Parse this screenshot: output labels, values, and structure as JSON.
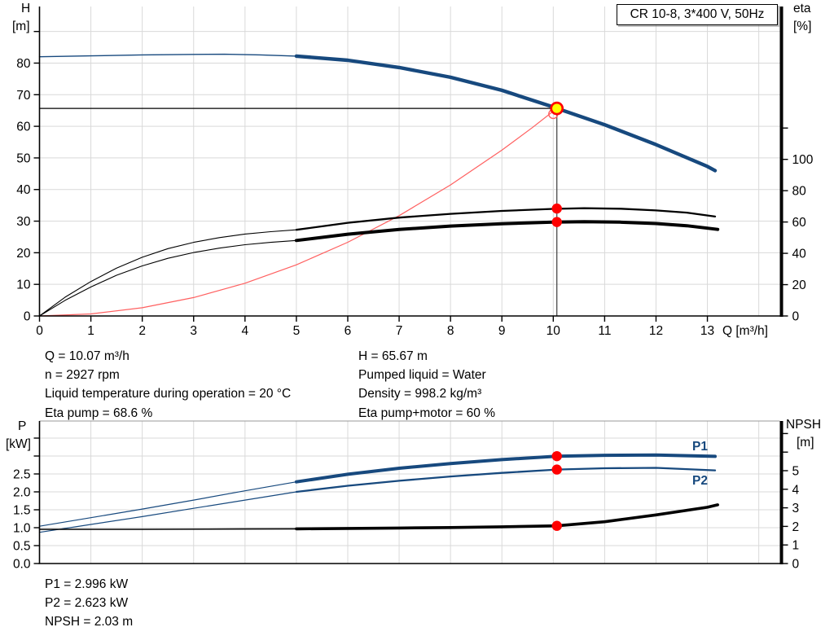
{
  "colors": {
    "curve_blue": "#17497E",
    "grid": "#D9D9D9",
    "axis": "#000000",
    "red": "#FF0000",
    "system_red": "#FF6060",
    "marker_yellow": "#FFFF00",
    "frame_gray": "#9A9A9A",
    "crosshair_gray": "#3C3C3C"
  },
  "info_top": {
    "left": [
      "Q = 10.07 m³/h",
      "n = 2927 rpm",
      "Liquid temperature during operation = 20 °C",
      "Eta pump = 68.6 %"
    ],
    "right": [
      "H = 65.67 m",
      "Pumped liquid = Water",
      "Density = 998.2 kg/m³",
      "Eta pump+motor = 60 %"
    ]
  },
  "info_bottom": [
    "P1 = 2.996 kW",
    "P2 = 2.623 kW",
    "NPSH = 2.03 m"
  ],
  "chart_data": [
    {
      "type": "line",
      "name": "hq-eta-chart",
      "title": "CR 10-8, 3*400 V, 50Hz",
      "x": {
        "label": "Q [m³/h]",
        "min": 0,
        "max": 14.41,
        "tick_values": [
          0,
          1,
          2,
          3,
          4,
          5,
          6,
          7,
          8,
          9,
          10,
          11,
          12,
          13
        ],
        "tick_labels": [
          "0",
          "1",
          "2",
          "3",
          "4",
          "5",
          "6",
          "7",
          "8",
          "9",
          "10",
          "11",
          "12",
          "13"
        ],
        "grid_values": [
          1,
          2,
          3,
          4,
          5,
          6,
          7,
          8,
          9,
          10,
          11,
          12,
          13,
          14
        ],
        "show_x_labels": true
      },
      "y_left": {
        "label": "H",
        "unit": "[m]",
        "min": 0,
        "max": 97.9,
        "tick_values": [
          0,
          10,
          20,
          30,
          40,
          50,
          60,
          70,
          80
        ],
        "tick_labels": [
          "0",
          "10",
          "20",
          "30",
          "40",
          "50",
          "60",
          "70",
          "80"
        ],
        "minor_ticks": [
          90
        ],
        "grid_values": [
          10,
          20,
          30,
          40,
          50,
          60,
          70,
          80,
          90
        ]
      },
      "y_right": {
        "label": "eta",
        "unit": "[%]",
        "min": 0,
        "max": 197.6,
        "tick_values": [
          0,
          20,
          40,
          60,
          80,
          100
        ],
        "tick_labels": [
          "0",
          "20",
          "40",
          "60",
          "80",
          "100"
        ],
        "minor_ticks": [
          120
        ]
      },
      "crosshair": {
        "q": 10.07,
        "value": 65.67
      },
      "series": [
        {
          "name": "head-curve-low-flow",
          "axis": "left",
          "color": "#17497E",
          "width": 1.4,
          "points": [
            [
              0,
              82.0
            ],
            [
              1,
              82.3
            ],
            [
              2,
              82.6
            ],
            [
              3,
              82.75
            ],
            [
              3.6,
              82.8
            ],
            [
              4.3,
              82.6
            ],
            [
              5,
              82.2
            ]
          ]
        },
        {
          "name": "head-curve",
          "axis": "left",
          "color": "#17497E",
          "width": 4.4,
          "points": [
            [
              5,
              82.2
            ],
            [
              6,
              80.9
            ],
            [
              7,
              78.6
            ],
            [
              8,
              75.5
            ],
            [
              9,
              71.4
            ],
            [
              10,
              66.1
            ],
            [
              10.07,
              65.67
            ],
            [
              11,
              60.5
            ],
            [
              12,
              54.2
            ],
            [
              13,
              47.3
            ],
            [
              13.15,
              46.0
            ]
          ]
        },
        {
          "name": "system-curve",
          "axis": "left",
          "color": "#FF6060",
          "width": 1.2,
          "points": [
            [
              0,
              0
            ],
            [
              1,
              0.65
            ],
            [
              2,
              2.59
            ],
            [
              3,
              5.83
            ],
            [
              4,
              10.36
            ],
            [
              5,
              16.19
            ],
            [
              6,
              23.31
            ],
            [
              7,
              31.73
            ],
            [
              8,
              41.45
            ],
            [
              9,
              52.46
            ],
            [
              9.6,
              59.7
            ],
            [
              10.07,
              65.67
            ]
          ]
        },
        {
          "name": "eta-pump-curve-low-flow",
          "axis": "right",
          "color": "#000000",
          "width": 1.1,
          "points": [
            [
              0,
              0
            ],
            [
              0.5,
              12
            ],
            [
              1,
              22
            ],
            [
              1.5,
              30.5
            ],
            [
              2,
              37.5
            ],
            [
              2.5,
              43
            ],
            [
              3,
              47
            ],
            [
              3.5,
              50
            ],
            [
              4,
              52.3
            ],
            [
              4.5,
              53.8
            ],
            [
              5,
              55
            ]
          ]
        },
        {
          "name": "eta-pump-curve",
          "axis": "right",
          "color": "#000000",
          "width": 2.3,
          "points": [
            [
              5,
              55
            ],
            [
              6,
              59.5
            ],
            [
              7,
              62.8
            ],
            [
              8,
              65.2
            ],
            [
              9,
              67.1
            ],
            [
              10,
              68.4
            ],
            [
              10.6,
              68.8
            ],
            [
              11.3,
              68.5
            ],
            [
              12,
              67.4
            ],
            [
              12.6,
              66.0
            ],
            [
              13.15,
              63.5
            ]
          ]
        },
        {
          "name": "eta-pump-motor-curve-low-flow",
          "axis": "right",
          "color": "#000000",
          "width": 1.1,
          "points": [
            [
              0,
              0
            ],
            [
              0.5,
              10
            ],
            [
              1,
              18.5
            ],
            [
              1.5,
              26
            ],
            [
              2,
              32
            ],
            [
              2.5,
              36.8
            ],
            [
              3,
              40.5
            ],
            [
              3.5,
              43.3
            ],
            [
              4,
              45.5
            ],
            [
              4.5,
              47
            ],
            [
              5,
              48.2
            ]
          ]
        },
        {
          "name": "eta-pump-motor-curve",
          "axis": "right",
          "color": "#000000",
          "width": 4.0,
          "points": [
            [
              5,
              48.2
            ],
            [
              6,
              52.2
            ],
            [
              7,
              55.2
            ],
            [
              8,
              57.4
            ],
            [
              9,
              58.9
            ],
            [
              10,
              59.9
            ],
            [
              10.6,
              60.2
            ],
            [
              11.3,
              59.9
            ],
            [
              12,
              59.0
            ],
            [
              12.6,
              57.6
            ],
            [
              13.2,
              55.3
            ]
          ]
        }
      ],
      "markers": [
        {
          "name": "system-curve-end-marker",
          "style": "open",
          "axis": "left",
          "q": 10.0,
          "value": 63.9
        },
        {
          "name": "duty-point-marker",
          "style": "duty",
          "axis": "left",
          "q": 10.07,
          "value": 65.67
        },
        {
          "name": "eta-pump-duty-marker",
          "style": "dot",
          "axis": "right",
          "q": 10.07,
          "value": 68.6
        },
        {
          "name": "eta-pump-motor-duty-marker",
          "style": "dot",
          "axis": "right",
          "q": 10.07,
          "value": 60
        }
      ]
    },
    {
      "type": "line",
      "name": "power-npsh-chart",
      "top_border": true,
      "x": {
        "label": "",
        "min": 0,
        "max": 14.41,
        "grid_values": [
          1,
          2,
          3,
          4,
          5,
          6,
          7,
          8,
          9,
          10,
          11,
          12,
          13,
          14
        ],
        "show_x_labels": false
      },
      "y_left": {
        "label": "P",
        "unit": "[kW]",
        "min": 0,
        "max": 3.977,
        "tick_values": [
          0,
          0.5,
          1,
          1.5,
          2,
          2.5
        ],
        "tick_labels": [
          "0.0",
          "0.5",
          "1.0",
          "1.5",
          "2.0",
          "2.5"
        ],
        "minor_ticks": [
          3.0,
          3.5
        ],
        "grid_values": [
          0.5,
          1,
          1.5,
          2,
          2.5,
          3,
          3.5
        ]
      },
      "y_right": {
        "label": "NPSH",
        "unit": "[m]",
        "min": 0,
        "max": 7.675,
        "tick_values": [
          0,
          1,
          2,
          3,
          4,
          5
        ],
        "tick_labels": [
          "0",
          "1",
          "2",
          "3",
          "4",
          "5"
        ],
        "minor_ticks": [
          6,
          7
        ]
      },
      "series_labels": {
        "p1": "P1",
        "p2": "P2"
      },
      "series": [
        {
          "name": "p1-curve-low-flow",
          "axis": "left",
          "color": "#17497E",
          "width": 1.2,
          "points": [
            [
              0,
              1.04
            ],
            [
              1,
              1.28
            ],
            [
              2,
              1.52
            ],
            [
              3,
              1.77
            ],
            [
              4,
              2.03
            ],
            [
              5,
              2.28
            ]
          ]
        },
        {
          "name": "p1-curve",
          "axis": "left",
          "color": "#17497E",
          "width": 4.0,
          "points": [
            [
              5,
              2.28
            ],
            [
              6,
              2.49
            ],
            [
              7,
              2.66
            ],
            [
              8,
              2.79
            ],
            [
              9,
              2.9
            ],
            [
              10.07,
              2.996
            ],
            [
              11,
              3.02
            ],
            [
              12,
              3.03
            ],
            [
              13.15,
              2.99
            ]
          ]
        },
        {
          "name": "p2-curve-low-flow",
          "axis": "left",
          "color": "#17497E",
          "width": 1.2,
          "points": [
            [
              0,
              0.87
            ],
            [
              1,
              1.09
            ],
            [
              2,
              1.31
            ],
            [
              3,
              1.54
            ],
            [
              4,
              1.77
            ],
            [
              5,
              2.0
            ]
          ]
        },
        {
          "name": "p2-curve",
          "axis": "left",
          "color": "#17497E",
          "width": 2.3,
          "points": [
            [
              5,
              2.0
            ],
            [
              6,
              2.17
            ],
            [
              7,
              2.31
            ],
            [
              8,
              2.43
            ],
            [
              9,
              2.53
            ],
            [
              10.07,
              2.623
            ],
            [
              11,
              2.66
            ],
            [
              12,
              2.67
            ],
            [
              13.15,
              2.6
            ]
          ]
        },
        {
          "name": "npsh-curve-low-flow",
          "axis": "right",
          "color": "#000000",
          "width": 1.6,
          "points": [
            [
              0,
              1.84
            ],
            [
              2,
              1.84
            ],
            [
              4,
              1.86
            ],
            [
              5,
              1.87
            ]
          ]
        },
        {
          "name": "npsh-curve",
          "axis": "right",
          "color": "#000000",
          "width": 3.6,
          "points": [
            [
              5,
              1.87
            ],
            [
              7,
              1.91
            ],
            [
              8,
              1.94
            ],
            [
              9,
              1.98
            ],
            [
              10.07,
              2.03
            ],
            [
              11,
              2.25
            ],
            [
              12,
              2.62
            ],
            [
              13,
              3.03
            ],
            [
              13.2,
              3.16
            ]
          ]
        }
      ],
      "markers": [
        {
          "name": "p1-duty-marker",
          "style": "dot",
          "axis": "left",
          "q": 10.07,
          "value": 2.996
        },
        {
          "name": "p2-duty-marker",
          "style": "dot",
          "axis": "left",
          "q": 10.07,
          "value": 2.623
        },
        {
          "name": "npsh-duty-marker",
          "style": "dot",
          "axis": "right",
          "q": 10.07,
          "value": 2.03
        }
      ]
    }
  ]
}
